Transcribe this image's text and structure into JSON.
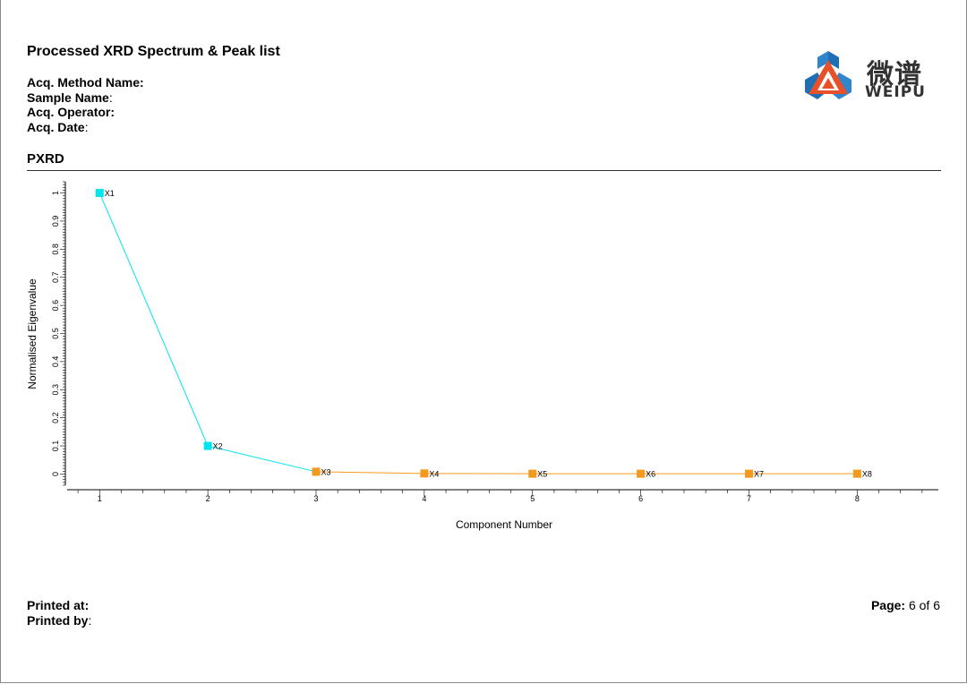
{
  "report": {
    "title": "Processed XRD Spectrum & Peak list",
    "fields": [
      {
        "label": "Acq. Method Name:",
        "value": ""
      },
      {
        "label": "Sample Name",
        "value": ":"
      },
      {
        "label": "Acq. Operator:",
        "value": ""
      },
      {
        "label": "Acq. Date",
        "value": ":"
      }
    ],
    "section_title": "PXRD"
  },
  "logo": {
    "cn_text": "微谱",
    "en_text": "WEIPU",
    "colors": {
      "blue": "#1f6fb7",
      "orange": "#e8502a"
    }
  },
  "footer": {
    "printed_at_label": "Printed at:",
    "printed_by_label": "Printed by",
    "printed_by_value": ":",
    "page_label": "Page:",
    "page_value": "6 of 6"
  },
  "chart_data": {
    "type": "line",
    "xlabel": "Component Number",
    "ylabel": "Normalised Eigenvalue",
    "x": [
      1,
      2,
      3,
      4,
      5,
      6,
      7,
      8
    ],
    "point_labels": [
      "X1",
      "X2",
      "X3",
      "X4",
      "X5",
      "X6",
      "X7",
      "X8"
    ],
    "y": [
      1.0,
      0.1,
      0.008,
      0.002,
      0.001,
      0.001,
      0.001,
      0.001
    ],
    "point_colors": [
      "#00e5ee",
      "#00e5ee",
      "#f39a1e",
      "#f39a1e",
      "#f39a1e",
      "#f39a1e",
      "#f39a1e",
      "#f39a1e"
    ],
    "segment_colors": [
      "#00e5ee",
      "#00e5ee",
      "#f39a1e",
      "#f39a1e",
      "#f39a1e",
      "#f39a1e",
      "#f39a1e"
    ],
    "xticks": [
      "1",
      "2",
      "3",
      "4",
      "5",
      "6",
      "7",
      "8"
    ],
    "yticks": [
      "0",
      "0.1",
      "0.2",
      "0.3",
      "0.4",
      "0.5",
      "0.6",
      "0.7",
      "0.8",
      "0.9",
      "1"
    ],
    "xlim": [
      0.7,
      8.75
    ],
    "ylim": [
      -0.04,
      1.04
    ],
    "grid": false,
    "legend": "none"
  }
}
